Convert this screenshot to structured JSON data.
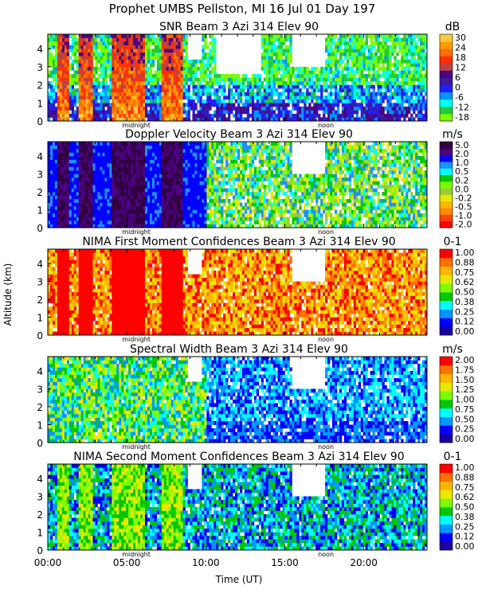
{
  "header": {
    "title": "Prophet  UMBS Pellston, MI  16 Jul 01 Day 197"
  },
  "common": {
    "ylabel": "Altitude (km)",
    "xlabel": "Time (UT)",
    "x_ticks": [
      "00:00",
      "05:00",
      "10:00",
      "15:00",
      "20:00"
    ],
    "x_tick_hours": [
      0,
      5,
      10,
      15,
      20
    ],
    "x_range_hours": [
      0,
      24
    ],
    "y_ticks": [
      0,
      1,
      2,
      3,
      4
    ],
    "y_range_km": [
      0,
      4.8
    ],
    "markers": [
      {
        "label": "midnight",
        "hour": 5.6
      },
      {
        "label": "noon",
        "hour": 17.6
      }
    ]
  },
  "chart_data": [
    {
      "type": "heatmap",
      "title": "SNR Beam 3 Azi 314 Elev 90",
      "unit": "dB",
      "colorbar_ticks": [
        "30",
        "24",
        "18",
        "12",
        "6",
        "0",
        "-6",
        "-12",
        "-18"
      ],
      "x_range_hours": [
        0,
        24
      ],
      "y_range_km": [
        0,
        4.8
      ],
      "colors": [
        "#7cfc00",
        "#22cc33",
        "#00ffff",
        "#0096ff",
        "#1e1eff",
        "#3a1a9e",
        "#4b0082",
        "#c04040",
        "#ff3000",
        "#ff7000",
        "#ff9a00",
        "#ffcc40"
      ]
    },
    {
      "type": "heatmap",
      "title": "Doppler Velocity Beam 3 Azi 314 Elev 90",
      "unit": "m/s",
      "colorbar_ticks": [
        "5.0",
        "2.0",
        "1.0",
        "0.5",
        "0.2",
        "0.0",
        "-0.2",
        "-0.5",
        "-1.0",
        "-2.0"
      ],
      "x_range_hours": [
        0,
        24
      ],
      "y_range_km": [
        0,
        4.8
      ],
      "colors": [
        "#ff0000",
        "#ff4500",
        "#ff8c00",
        "#ffb400",
        "#e8e800",
        "#9acd32",
        "#7cfc00",
        "#00c800",
        "#00ffff",
        "#1e90ff",
        "#0000ff",
        "#4b0082",
        "#300040"
      ]
    },
    {
      "type": "heatmap",
      "title": "NIMA First Moment Confidences Beam 3 Azi 314 Elev 90",
      "unit": "0-1",
      "colorbar_ticks": [
        "1.00",
        "0.88",
        "0.75",
        "0.62",
        "0.50",
        "0.38",
        "0.25",
        "0.12",
        "0.00"
      ],
      "x_range_hours": [
        0,
        24
      ],
      "y_range_km": [
        0,
        4.8
      ],
      "colors": [
        "#1a00a0",
        "#0000ff",
        "#0096ff",
        "#00ffff",
        "#00c800",
        "#7cfc00",
        "#e8e800",
        "#ffb400",
        "#ff7000",
        "#ff0000"
      ]
    },
    {
      "type": "heatmap",
      "title": "Spectral Width Beam 3 Azi 314 Elev 90",
      "unit": "m/s",
      "colorbar_ticks": [
        "2.00",
        "1.75",
        "1.50",
        "1.25",
        "1.00",
        "0.75",
        "0.50",
        "0.25",
        "0.00"
      ],
      "x_range_hours": [
        0,
        24
      ],
      "y_range_km": [
        0,
        4.8
      ],
      "colors": [
        "#1a00a0",
        "#0000ff",
        "#0096ff",
        "#00ffff",
        "#00c800",
        "#7cfc00",
        "#e8e800",
        "#ffb400",
        "#ff7000",
        "#ff0000"
      ]
    },
    {
      "type": "heatmap",
      "title": "NIMA Second Moment Confidences Beam 3 Azi 314 Elev 90",
      "unit": "0-1",
      "colorbar_ticks": [
        "1.00",
        "0.88",
        "0.75",
        "0.62",
        "0.50",
        "0.38",
        "0.25",
        "0.12",
        "0.00"
      ],
      "x_range_hours": [
        0,
        24
      ],
      "y_range_km": [
        0,
        4.8
      ],
      "colors": [
        "#1a00a0",
        "#0000ff",
        "#0096ff",
        "#00ffff",
        "#00c800",
        "#7cfc00",
        "#e8e800",
        "#ffb400",
        "#ff7000",
        "#ff0000"
      ]
    }
  ]
}
